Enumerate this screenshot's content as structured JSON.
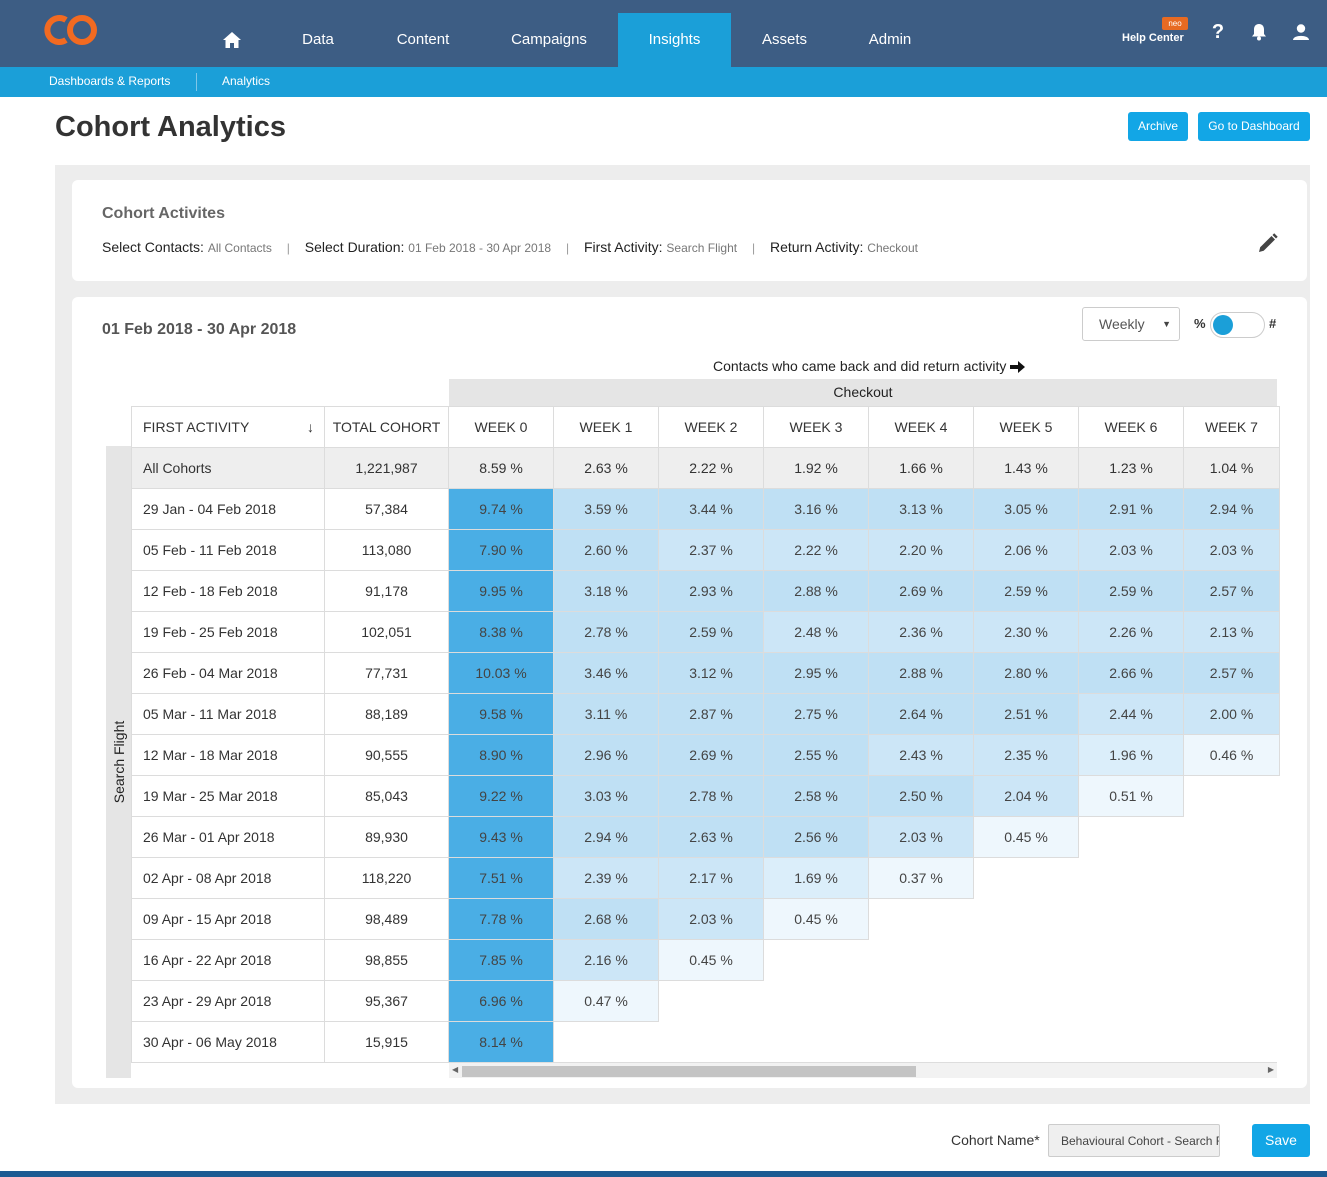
{
  "nav": {
    "items": [
      {
        "label": "Data"
      },
      {
        "label": "Content"
      },
      {
        "label": "Campaigns"
      },
      {
        "label": "Insights",
        "active": true
      },
      {
        "label": "Assets"
      },
      {
        "label": "Admin"
      }
    ],
    "help_label": "Help Center",
    "neo_badge": "neo"
  },
  "subnav": {
    "items": [
      {
        "label": "Dashboards & Reports"
      },
      {
        "label": "Analytics"
      }
    ]
  },
  "header": {
    "title": "Cohort Analytics",
    "archive_label": "Archive",
    "dashboard_label": "Go to Dashboard"
  },
  "activities": {
    "title": "Cohort Activites",
    "contacts_label": "Select Contacts:",
    "contacts_value": "All Contacts",
    "duration_label": "Select Duration:",
    "duration_value": "01 Feb 2018 - 30 Apr 2018",
    "first_label": "First Activity:",
    "first_value": "Search Flight",
    "return_label": "Return Activity:",
    "return_value": "Checkout"
  },
  "report": {
    "range_title": "01 Feb 2018 - 30 Apr 2018",
    "period_select": "Weekly",
    "toggle_pct": "%",
    "toggle_num": "#",
    "caption": "Contacts who came back and did return activity",
    "return_activity": "Checkout",
    "side_label": "Search Flight",
    "columns": {
      "first": "FIRST ACTIVITY",
      "total": "TOTAL COHORT",
      "weeks": [
        "WEEK 0",
        "WEEK 1",
        "WEEK 2",
        "WEEK 3",
        "WEEK 4",
        "WEEK 5",
        "WEEK 6",
        "WEEK 7"
      ]
    },
    "all_row": {
      "label": "All Cohorts",
      "total": "1,221,987",
      "values": [
        "8.59 %",
        "2.63 %",
        "2.22 %",
        "1.92 %",
        "1.66 %",
        "1.43 %",
        "1.23 %",
        "1.04 %"
      ]
    },
    "rows": [
      {
        "label": "29 Jan - 04 Feb 2018",
        "total": "57,384",
        "values": [
          "9.74 %",
          "3.59 %",
          "3.44 %",
          "3.16 %",
          "3.13 %",
          "3.05 %",
          "2.91 %",
          "2.94 %"
        ]
      },
      {
        "label": "05 Feb - 11 Feb 2018",
        "total": "113,080",
        "values": [
          "7.90 %",
          "2.60 %",
          "2.37 %",
          "2.22 %",
          "2.20 %",
          "2.06 %",
          "2.03 %",
          "2.03 %"
        ]
      },
      {
        "label": "12 Feb - 18 Feb 2018",
        "total": "91,178",
        "values": [
          "9.95 %",
          "3.18 %",
          "2.93 %",
          "2.88 %",
          "2.69 %",
          "2.59 %",
          "2.59 %",
          "2.57 %"
        ]
      },
      {
        "label": "19 Feb - 25 Feb 2018",
        "total": "102,051",
        "values": [
          "8.38 %",
          "2.78 %",
          "2.59 %",
          "2.48 %",
          "2.36 %",
          "2.30 %",
          "2.26 %",
          "2.13 %"
        ]
      },
      {
        "label": "26 Feb - 04 Mar 2018",
        "total": "77,731",
        "values": [
          "10.03 %",
          "3.46 %",
          "3.12 %",
          "2.95 %",
          "2.88 %",
          "2.80 %",
          "2.66 %",
          "2.57 %"
        ]
      },
      {
        "label": "05 Mar - 11 Mar 2018",
        "total": "88,189",
        "values": [
          "9.58 %",
          "3.11 %",
          "2.87 %",
          "2.75 %",
          "2.64 %",
          "2.51 %",
          "2.44 %",
          "2.00 %"
        ]
      },
      {
        "label": "12 Mar - 18 Mar 2018",
        "total": "90,555",
        "values": [
          "8.90 %",
          "2.96 %",
          "2.69 %",
          "2.55 %",
          "2.43 %",
          "2.35 %",
          "1.96 %",
          "0.46 %"
        ]
      },
      {
        "label": "19 Mar - 25 Mar 2018",
        "total": "85,043",
        "values": [
          "9.22 %",
          "3.03 %",
          "2.78 %",
          "2.58 %",
          "2.50 %",
          "2.04 %",
          "0.51 %"
        ]
      },
      {
        "label": "26 Mar - 01 Apr 2018",
        "total": "89,930",
        "values": [
          "9.43 %",
          "2.94 %",
          "2.63 %",
          "2.56 %",
          "2.03 %",
          "0.45 %"
        ]
      },
      {
        "label": "02 Apr - 08 Apr 2018",
        "total": "118,220",
        "values": [
          "7.51 %",
          "2.39 %",
          "2.17 %",
          "1.69 %",
          "0.37 %"
        ]
      },
      {
        "label": "09 Apr - 15 Apr 2018",
        "total": "98,489",
        "values": [
          "7.78 %",
          "2.68 %",
          "2.03 %",
          "0.45 %"
        ]
      },
      {
        "label": "16 Apr - 22 Apr 2018",
        "total": "98,855",
        "values": [
          "7.85 %",
          "2.16 %",
          "0.45 %"
        ]
      },
      {
        "label": "23 Apr - 29 Apr 2018",
        "total": "95,367",
        "values": [
          "6.96 %",
          "0.47 %"
        ]
      },
      {
        "label": "30 Apr - 06 May 2018",
        "total": "15,915",
        "values": [
          "8.14 %"
        ]
      }
    ]
  },
  "footer": {
    "cohort_name_label": "Cohort Name*",
    "cohort_name_value": "Behavioural Cohort - Search Flight",
    "save_label": "Save"
  },
  "colors": {
    "nav_bg": "#3d5d84",
    "accent": "#1b9fd8",
    "week0_cell": "#4aaee5",
    "button": "#12a6e6",
    "logo": "#f26a21"
  },
  "icons": [
    "logo-icon",
    "home-icon",
    "help-icon",
    "bell-icon",
    "user-icon",
    "edit-icon",
    "arrow-right-icon",
    "sort-down-icon"
  ]
}
